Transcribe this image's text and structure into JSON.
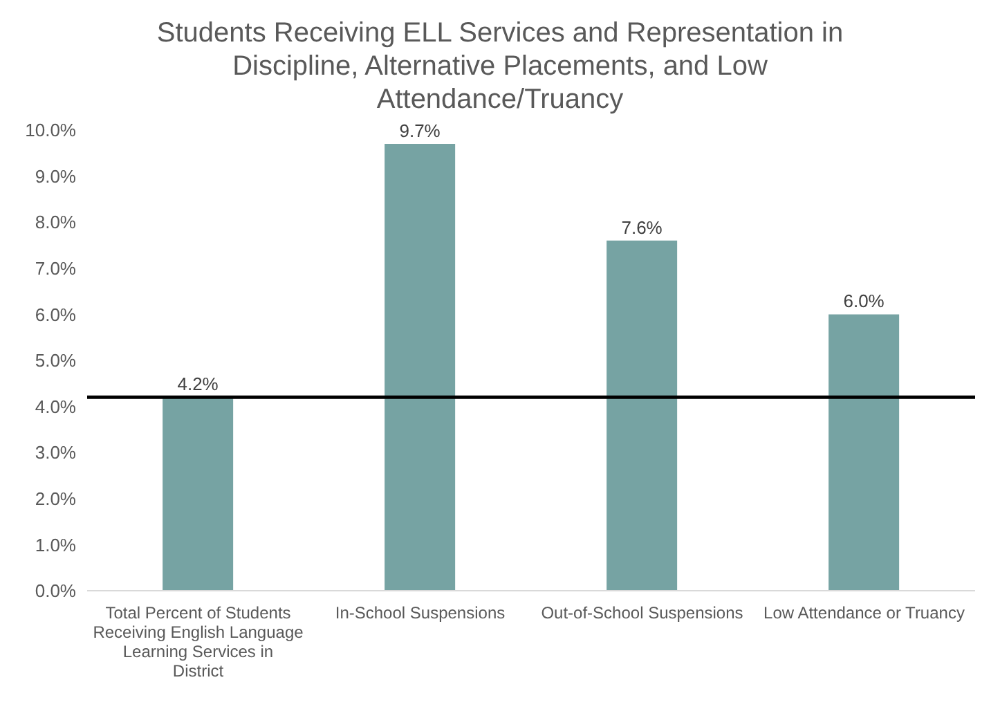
{
  "chart_data": {
    "type": "bar",
    "title": "Students Receiving ELL Services and Representation in Discipline, Alternative Placements, and Low Attendance/Truancy",
    "categories": [
      "Total Percent of Students Receiving English Language Learning Services in District",
      "In-School Suspensions",
      "Out-of-School Suspensions",
      "Low Attendance or Truancy"
    ],
    "values": [
      4.2,
      9.7,
      7.6,
      6.0
    ],
    "value_labels": [
      "4.2%",
      "9.7%",
      "7.6%",
      "6.0%"
    ],
    "color": "#76a3a3",
    "ylim": [
      0,
      10
    ],
    "yticks": [
      {
        "value": 0,
        "label": "0.0%"
      },
      {
        "value": 1,
        "label": "1.0%"
      },
      {
        "value": 2,
        "label": "2.0%"
      },
      {
        "value": 3,
        "label": "3.0%"
      },
      {
        "value": 4,
        "label": "4.0%"
      },
      {
        "value": 5,
        "label": "5.0%"
      },
      {
        "value": 6,
        "label": "6.0%"
      },
      {
        "value": 7,
        "label": "7.0%"
      },
      {
        "value": 8,
        "label": "8.0%"
      },
      {
        "value": 9,
        "label": "9.0%"
      },
      {
        "value": 10,
        "label": "10.0%"
      }
    ],
    "ref_lines": [
      {
        "axis": "y",
        "value": 4.2,
        "color": "#000000"
      }
    ],
    "grid": false
  }
}
